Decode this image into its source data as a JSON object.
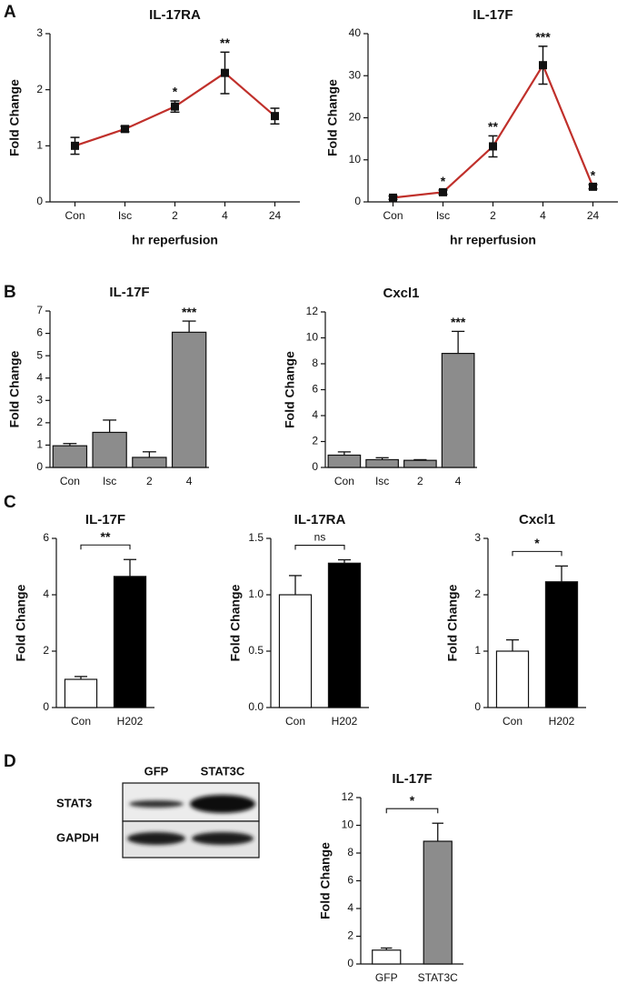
{
  "panel_labels": [
    "A",
    "B",
    "C",
    "D"
  ],
  "blot": {
    "lanes": [
      "GFP",
      "STAT3C"
    ],
    "bands": [
      "STAT3",
      "GAPDH"
    ]
  },
  "chart_data": [
    {
      "type": "line",
      "title": "IL-17RA",
      "ylabel": "Fold Change",
      "xlabel": "hr reperfusion",
      "categories": [
        "Con",
        "Isc",
        "2",
        "4",
        "24"
      ],
      "values": [
        1.0,
        1.3,
        1.7,
        2.3,
        1.53
      ],
      "errors": [
        0.15,
        0.05,
        0.1,
        0.37,
        0.14
      ],
      "color": "#c0302b",
      "marker_color": "#111111",
      "ylim": [
        0,
        3
      ],
      "yticks": [
        0,
        1,
        2,
        3
      ],
      "annotations": [
        {
          "index": 2,
          "text": "*"
        },
        {
          "index": 3,
          "text": "**"
        }
      ]
    },
    {
      "type": "line",
      "title": "IL-17F",
      "ylabel": "Fold Change",
      "xlabel": "hr reperfusion",
      "categories": [
        "Con",
        "Isc",
        "2",
        "4",
        "24"
      ],
      "values": [
        1.0,
        2.3,
        13.2,
        32.5,
        3.6
      ],
      "errors": [
        0.4,
        0.5,
        2.5,
        4.5,
        0.5
      ],
      "color": "#c0302b",
      "marker_color": "#111111",
      "ylim": [
        0,
        40
      ],
      "yticks": [
        0,
        10,
        20,
        30,
        40
      ],
      "annotations": [
        {
          "index": 1,
          "text": "*"
        },
        {
          "index": 2,
          "text": "**"
        },
        {
          "index": 3,
          "text": "***"
        },
        {
          "index": 4,
          "text": "*"
        }
      ]
    },
    {
      "type": "bar",
      "title": "IL-17F",
      "ylabel": "Fold Change",
      "categories": [
        "Con",
        "Isc",
        "2",
        "4"
      ],
      "values": [
        0.97,
        1.57,
        0.45,
        6.05
      ],
      "errors": [
        0.1,
        0.55,
        0.25,
        0.5
      ],
      "color": "#8c8c8c",
      "ylim": [
        0,
        7
      ],
      "yticks": [
        0,
        1,
        2,
        3,
        4,
        5,
        6,
        7
      ],
      "annotations": [
        {
          "index": 3,
          "text": "***"
        }
      ]
    },
    {
      "type": "bar",
      "title": "Cxcl1",
      "ylabel": "Fold Change",
      "categories": [
        "Con",
        "Isc",
        "2",
        "4"
      ],
      "values": [
        0.95,
        0.6,
        0.55,
        8.8
      ],
      "errors": [
        0.25,
        0.15,
        0.05,
        1.7
      ],
      "color": "#8c8c8c",
      "ylim": [
        0,
        12
      ],
      "yticks": [
        0,
        2,
        4,
        6,
        8,
        10,
        12
      ],
      "annotations": [
        {
          "index": 3,
          "text": "***"
        }
      ]
    },
    {
      "type": "bar",
      "title": "IL-17F",
      "ylabel": "Fold Change",
      "categories": [
        "Con",
        "H202"
      ],
      "values": [
        1.0,
        4.65
      ],
      "errors": [
        0.1,
        0.6
      ],
      "colors": [
        "#ffffff",
        "#000000"
      ],
      "ylim": [
        0,
        6
      ],
      "yticks": [
        0,
        2,
        4,
        6
      ],
      "bracket": "**"
    },
    {
      "type": "bar",
      "title": "IL-17RA",
      "ylabel": "Fold Change",
      "categories": [
        "Con",
        "H202"
      ],
      "values": [
        1.0,
        1.28
      ],
      "errors": [
        0.17,
        0.03
      ],
      "colors": [
        "#ffffff",
        "#000000"
      ],
      "ylim": [
        0,
        1.5
      ],
      "yticks": [
        {
          "value": 0,
          "label": "0.0"
        },
        0.5,
        {
          "value": 1,
          "label": "1.0"
        },
        1.5
      ],
      "bracket": "ns"
    },
    {
      "type": "bar",
      "title": "Cxcl1",
      "ylabel": "Fold Change",
      "categories": [
        "Con",
        "H202"
      ],
      "values": [
        1.0,
        2.23
      ],
      "errors": [
        0.2,
        0.28
      ],
      "colors": [
        "#ffffff",
        "#000000"
      ],
      "ylim": [
        0,
        3
      ],
      "yticks": [
        0,
        1,
        2,
        3
      ],
      "bracket": "*"
    },
    {
      "type": "bar",
      "title": "IL-17F",
      "ylabel": "Fold Change",
      "categories": [
        "GFP",
        "STAT3C"
      ],
      "values": [
        1.0,
        8.85
      ],
      "errors": [
        0.15,
        1.3
      ],
      "colors": [
        "#ffffff",
        "#8c8c8c"
      ],
      "ylim": [
        0,
        12
      ],
      "yticks": [
        0,
        2,
        4,
        6,
        8,
        10,
        12
      ],
      "bracket": "*"
    }
  ]
}
